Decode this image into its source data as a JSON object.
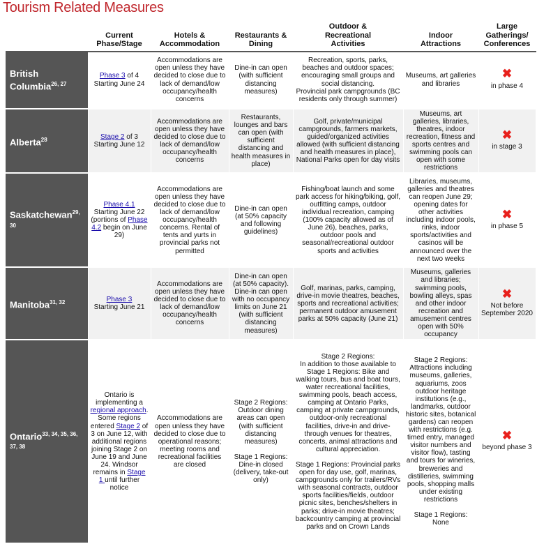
{
  "title": "Tourism Related Measures",
  "headers": [
    "",
    "Current Phase/Stage",
    "Hotels & Accommodation",
    "Restaurants & Dining",
    "Outdoor & Recreational Activities",
    "Indoor Attractions",
    "Large Gatherings/ Conferences"
  ],
  "icons": {
    "not_permitted": "red-x-icon"
  },
  "colors": {
    "title": "#c0272d",
    "x_mark": "#e8201c",
    "province_bg": "#555555",
    "link": "#1a0dab"
  },
  "rows": [
    {
      "province": "British Columbia",
      "refs": "26, 27",
      "phase": [
        {
          "t": "Phase 3",
          "link": true
        },
        {
          "t": " of 4\nStarting June 24"
        }
      ],
      "hotels": "Accommodations are open unless they have decided to close due to lack of demand/low occupancy/health concerns",
      "restaurants": "Dine-in can open (with sufficient distancing measures)",
      "outdoor": "Recreation, sports, parks, beaches and outdoor spaces; encouraging small groups and social distancing.\nProvincial park campgrounds (BC residents only through summer)",
      "indoor": "Museums, art galleries and libraries",
      "gatherings": "in phase 4"
    },
    {
      "province": "Alberta",
      "refs": "28",
      "phase": [
        {
          "t": "Stage 2",
          "link": true
        },
        {
          "t": " of 3\nStarting June 12"
        }
      ],
      "hotels": "Accommodations are open unless they have decided to close due to lack of demand/low occupancy/health concerns",
      "restaurants": "Restaurants, lounges and bars can open (with sufficient distancing and health measures in place)",
      "outdoor": "Golf, private/municipal campgrounds, farmers markets, guided/organized activities allowed (with sufficient distancing and health measures in place), National Parks open for day visits",
      "indoor": "Museums, art galleries, libraries, theatres, indoor recreation, fitness and sports centres and swimming pools can open with some restrictions",
      "gatherings": "in stage 3"
    },
    {
      "province": "Saskatchewan",
      "refs": "29, 30",
      "phase": [
        {
          "t": "Phase 4.1",
          "link": true
        },
        {
          "t": "\nStarting June 22 (portions of "
        },
        {
          "t": "Phase 4.2",
          "link": true
        },
        {
          "t": " begin on June 29)"
        }
      ],
      "hotels": "Accommodations are open unless they have decided to close due to lack of demand/low occupancy/health concerns. Rental of tents and yurts in provincial parks not permitted",
      "restaurants": "Dine-in can open (at 50% capacity and following guidelines)",
      "outdoor": "Fishing/boat launch and some park access for hiking/biking, golf, outfitting camps, outdoor individual recreation, camping (100% capacity allowed as of June 26), beaches, parks, outdoor pools and seasonal/recreational outdoor sports and activities",
      "indoor": "Libraries, museums, galleries and theatres can reopen June 29;\nopening dates for other activities including indoor pools, rinks, indoor sports/activities and casinos will be announced over the next two weeks",
      "gatherings": "in phase 5"
    },
    {
      "province": "Manitoba",
      "refs": "31, 32",
      "phase": [
        {
          "t": "Phase 3",
          "link": true
        },
        {
          "t": "\nStarting June 21"
        }
      ],
      "hotels": "Accommodations are open unless they have decided to close due to lack of demand/low occupancy/health concerns",
      "restaurants": "Dine-in can open (at 50% capacity). Dine-in can open with no occupancy limits on June 21 (with sufficient distancing measures)",
      "outdoor": "Golf, marinas, parks, camping, drive-in movie theatres, beaches, sports and recreational activities; permanent outdoor amusement parks at 50% capacity (June 21)",
      "indoor": "Museums, galleries and libraries; swimming pools, bowling alleys, spas and other indoor recreation and amusement centres open with 50% occupancy",
      "gatherings": "Not before September 2020"
    },
    {
      "province": "Ontario",
      "refs": "33, 34, 35, 36, 37, 38",
      "phase": [
        {
          "t": "Ontario is implementing a "
        },
        {
          "t": "regional approach",
          "link": true
        },
        {
          "t": ". Some regions entered "
        },
        {
          "t": "Stage 2",
          "link": true
        },
        {
          "t": " of 3 on June 12, with additional regions joining Stage 2 on June 19 and June 24. Windsor remains in "
        },
        {
          "t": "Stage 1 ",
          "link": true
        },
        {
          "t": "until further notice"
        }
      ],
      "hotels": "Accommodations are open unless they have decided to close due to operational reasons; meeting rooms and recreational facilities are closed",
      "restaurants": "Stage 2 Regions: Outdoor dining areas can open (with sufficient distancing measures)\n\nStage 1 Regions: Dine-in closed (delivery, take-out only)",
      "outdoor": "Stage 2 Regions:\nIn addition to those available to Stage 1 Regions: Bike and walking tours, bus and boat tours, water recreational facilities, swimming pools, beach access, camping at Ontario Parks, camping at private campgrounds, outdoor-only recreational facilities, drive-in and drive-through venues for theatres, concerts, animal attractions and cultural appreciation.\n\nStage 1 Regions: Provincial parks open for day use, golf, marinas, campgrounds only for trailers/RVs with seasonal contracts, outdoor sports facilities/fields, outdoor picnic sites, benches/shelters in parks; drive-in movie theatres; backcountry camping at provincial parks and on Crown Lands",
      "indoor": "Stage 2 Regions: Attractions including museums, galleries, aquariums, zoos outdoor heritage institutions (e.g., landmarks, outdoor historic sites, botanical gardens) can reopen with restrictions (e.g. timed entry, managed visitor numbers and visitor flow), tasting and tours for wineries, breweries and distilleries, swimming pools, shopping malls under existing restrictions\n\nStage 1 Regions: None",
      "gatherings": "beyond phase 3"
    }
  ]
}
